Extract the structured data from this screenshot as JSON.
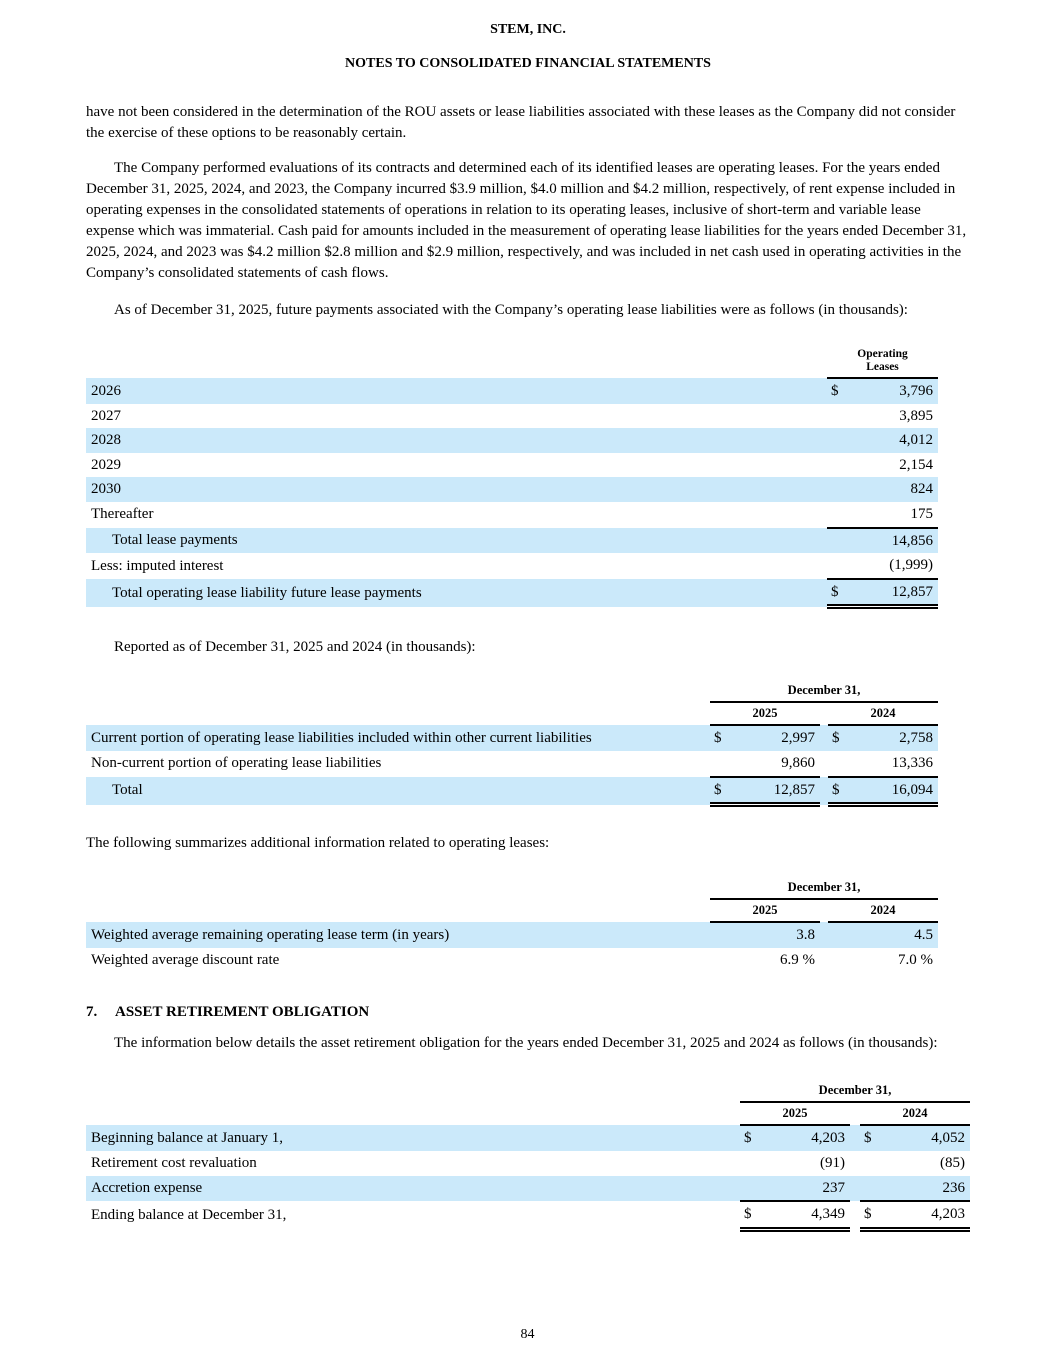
{
  "colors": {
    "row_shade": "#cbe9fa"
  },
  "header": {
    "company": "STEM, INC.",
    "doc_title": "NOTES TO CONSOLIDATED FINANCIAL STATEMENTS"
  },
  "paragraphs": {
    "p1": "have not been considered in the determination of the ROU assets or lease liabilities associated with these leases as the Company did not consider the exercise of these options to be reasonably certain.",
    "p2": "The Company performed evaluations of its contracts and determined each of its identified leases are operating leases. For the years ended December 31, 2025, 2024, and 2023, the Company incurred $3.9 million, $4.0 million and $4.2 million, respectively, of rent expense included in operating expenses in the consolidated statements of operations in relation to its operating leases, inclusive of short-term and variable lease expense which was immaterial. Cash paid for amounts included in the measurement of operating lease liabilities for the years ended December 31, 2025, 2024, and 2023 was $4.2 million $2.8 million and $2.9 million, respectively, and was included in net cash used in operating activities in the Company’s consolidated statements of cash flows.",
    "p3": "As of December 31, 2025, future payments associated with the Company’s operating lease liabilities were as follows (in thousands):",
    "p4": "Reported as of December 31, 2025 and 2024 (in thousands):",
    "p5": "The following summarizes additional information related to operating leases:",
    "p6": "The information below details the asset retirement obligation for the years ended December 31, 2025 and 2024 as follows (in thousands):"
  },
  "section7": {
    "number": "7.",
    "title": "ASSET RETIREMENT OBLIGATION"
  },
  "lease_table": {
    "col_header_line1": "Operating",
    "col_header_line2": "Leases",
    "rows": [
      {
        "label": "2026",
        "dollar": "$",
        "value": "3,796"
      },
      {
        "label": "2027",
        "value": "3,895"
      },
      {
        "label": "2028",
        "value": "4,012"
      },
      {
        "label": "2029",
        "value": "2,154"
      },
      {
        "label": "2030",
        "value": "824"
      },
      {
        "label": "Thereafter",
        "value": "175"
      },
      {
        "label": "Total lease payments",
        "value": "14,856"
      },
      {
        "label": "Less: imputed interest",
        "value": "(1,999)"
      },
      {
        "label": "Total operating lease liability future lease payments",
        "dollar": "$",
        "value": "12,857"
      }
    ]
  },
  "reported_table": {
    "group_header": "December 31,",
    "year1": "2025",
    "year2": "2024",
    "rows": [
      {
        "label": "Current portion of operating lease liabilities included within other current liabilities",
        "d1": "$",
        "v1": "2,997",
        "d2": "$",
        "v2": "2,758"
      },
      {
        "label": "Non-current portion of operating lease liabilities",
        "v1": "9,860",
        "v2": "13,336"
      },
      {
        "label": "Total",
        "d1": "$",
        "v1": "12,857",
        "d2": "$",
        "v2": "16,094"
      }
    ]
  },
  "summary_table": {
    "group_header": "December 31,",
    "year1": "2025",
    "year2": "2024",
    "rows": [
      {
        "label": "Weighted average remaining operating lease term (in years)",
        "v1": "3.8",
        "v2": "4.5"
      },
      {
        "label": "Weighted average discount rate",
        "v1": "6.9 %",
        "v2": "7.0 %"
      }
    ]
  },
  "aro_table": {
    "group_header": "December 31,",
    "year1": "2025",
    "year2": "2024",
    "rows": [
      {
        "label": "Beginning balance at January 1,",
        "d1": "$",
        "v1": "4,203",
        "d2": "$",
        "v2": "4,052"
      },
      {
        "label": "Retirement cost revaluation",
        "v1": "(91)",
        "v2": "(85)"
      },
      {
        "label": "Accretion expense",
        "v1": "237",
        "v2": "236"
      },
      {
        "label": "Ending balance at December 31,",
        "d1": "$",
        "v1": "4,349",
        "d2": "$",
        "v2": "4,203"
      }
    ]
  },
  "footer": {
    "page_number": "84"
  }
}
